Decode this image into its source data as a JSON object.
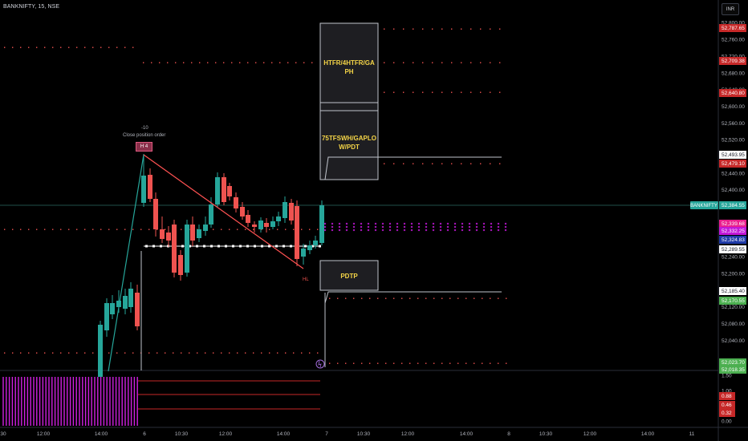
{
  "symbol_header": "BANKNIFTY, 15, NSE",
  "currency_button": "INR",
  "annotations": {
    "order_qty": "-10",
    "order_label": "Close position order",
    "swing_high_tag": "H 4",
    "hl_label": "HL",
    "box1_label": "HTFR/4HTFR/GA PH",
    "box2_label": "75TFSWH/GAPLO W/PDT",
    "box3_label": "PDTP"
  },
  "price_axis": {
    "ticks": [
      "52,800.00",
      "52,760.00",
      "52,720.00",
      "52,680.00",
      "52,640.00",
      "52,600.00",
      "52,560.00",
      "52,520.00",
      "52,480.00",
      "52,440.00",
      "52,400.00",
      "52,360.00",
      "52,320.00",
      "52,280.00",
      "52,240.00",
      "52,200.00",
      "52,160.00",
      "52,120.00",
      "52,080.00",
      "52,040.00"
    ],
    "badges": [
      {
        "text": "52,787.65",
        "color": "#c62828",
        "text_color": "#ffffff"
      },
      {
        "text": "52,709.38",
        "color": "#c62828",
        "text_color": "#ffffff"
      },
      {
        "text": "52,640.80",
        "color": "#c62828",
        "text_color": "#ffffff"
      },
      {
        "text": "52,493.95",
        "color": "#ffffff",
        "text_color": "#131722"
      },
      {
        "text": "52,479.10",
        "color": "#c62828",
        "text_color": "#ffffff"
      },
      {
        "text": "BANKNIFTY",
        "color": "#26a69a",
        "text_color": "#ffffff"
      },
      {
        "text": "52,384.55",
        "color": "#26a69a",
        "text_color": "#ffffff"
      },
      {
        "text": "52,339.68",
        "color": "#e91e8c",
        "text_color": "#ffffff"
      },
      {
        "text": "52,332.25",
        "color": "#c218d8",
        "text_color": "#ffffff"
      },
      {
        "text": "52,324.83",
        "color": "#1e3aa8",
        "text_color": "#ffffff"
      },
      {
        "text": "52,289.55",
        "color": "#ffffff",
        "text_color": "#131722"
      },
      {
        "text": "52,185.40",
        "color": "#ffffff",
        "text_color": "#131722"
      },
      {
        "text": "52,170.55",
        "color": "#4caf50",
        "text_color": "#ffffff"
      },
      {
        "text": "52,023.70",
        "color": "#4caf50",
        "text_color": "#ffffff"
      },
      {
        "text": "52,018.35",
        "color": "#4caf50",
        "text_color": "#ffffff"
      }
    ]
  },
  "indicator_axis": {
    "ticks": [
      "1.50",
      "1.00",
      "0.00"
    ],
    "badges": [
      {
        "text": "0.88",
        "color": "#c62828"
      },
      {
        "text": "0.46",
        "color": "#c62828"
      },
      {
        "text": "0.32",
        "color": "#c62828"
      }
    ]
  },
  "time_axis": [
    "30",
    "12:00",
    "14:00",
    "6",
    "10:30",
    "12:00",
    "14:00",
    "7",
    "10:30",
    "12:00",
    "14:00",
    "8",
    "10:30",
    "12:00",
    "14:00",
    "11"
  ],
  "colors": {
    "up_candle": "#26a69a",
    "down_candle": "#ef5350",
    "red_level": "#ef5350",
    "magenta_level": "#c218d8",
    "box_fill": "#1e1e22",
    "box_text": "#f5d547",
    "trend_line": "#ff5252",
    "up_line": "#26a69a"
  }
}
